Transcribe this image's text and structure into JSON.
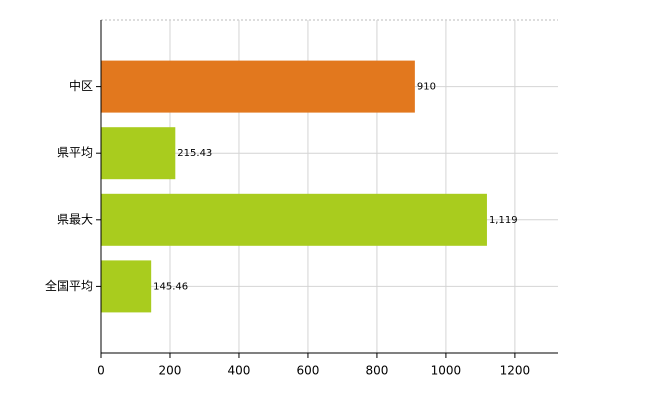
{
  "chart_data": {
    "type": "bar",
    "orientation": "horizontal",
    "categories": [
      "中区",
      "県平均",
      "県最大",
      "全国平均"
    ],
    "values": [
      910,
      215.43,
      1119,
      145.46
    ],
    "value_labels": [
      "910",
      "215.43",
      "1,119",
      "145.46"
    ],
    "colors": [
      "#e2781e",
      "#a9cc1e",
      "#a9cc1e",
      "#a9cc1e"
    ],
    "xlim": [
      0,
      1325
    ],
    "xticks": [
      0,
      200,
      400,
      600,
      800,
      1000,
      1200
    ],
    "grid": true
  }
}
